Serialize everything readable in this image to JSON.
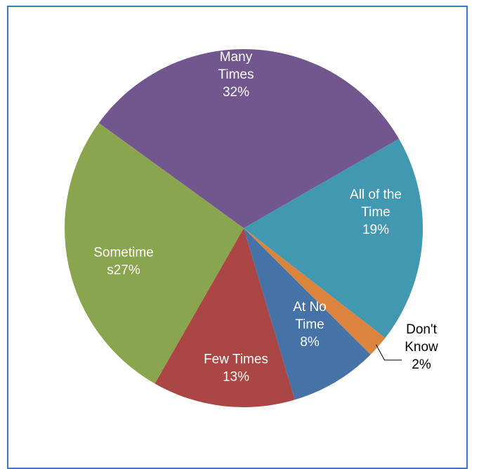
{
  "chart_data": {
    "type": "pie",
    "title": "",
    "slices": [
      {
        "label": [
          "Many",
          "Times",
          "32%"
        ],
        "value": 32,
        "color": "#72578f"
      },
      {
        "label": [
          "All of the",
          "Time",
          "19%"
        ],
        "value": 19,
        "color": "#4198b0"
      },
      {
        "label": [
          "Don't",
          "Know",
          "2%"
        ],
        "value": 2,
        "color": "#db843d"
      },
      {
        "label": [
          "At No",
          "Time",
          "8%"
        ],
        "value": 8,
        "color": "#4572a7"
      },
      {
        "label": [
          "Few Times",
          "13%"
        ],
        "value": 13,
        "color": "#aa4643"
      },
      {
        "label": [
          "Sometime",
          "s27%"
        ],
        "value": 27,
        "color": "#89a54e"
      }
    ]
  }
}
